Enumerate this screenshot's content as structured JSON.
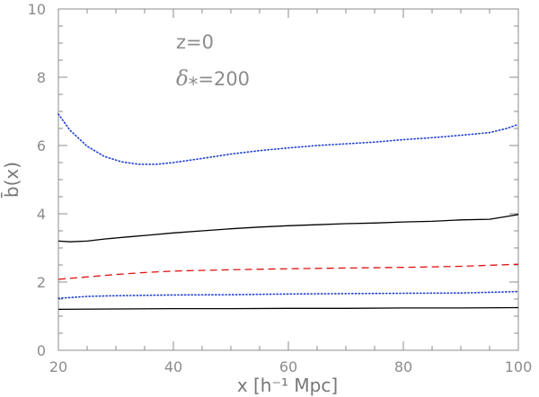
{
  "chart_data": {
    "type": "line",
    "title": "",
    "xlabel": "x [h⁻¹ Mpc]",
    "ylabel": "b̄(x)",
    "xlim": [
      20,
      100
    ],
    "ylim": [
      0,
      10
    ],
    "xticks": [
      "20",
      "40",
      "60",
      "80",
      "100"
    ],
    "yticks": [
      "0",
      "2",
      "4",
      "6",
      "8",
      "10"
    ],
    "annotations": {
      "redshift": "z=0",
      "threshold_symbol": "δ",
      "threshold_sub": "*",
      "threshold_value": "=200"
    },
    "grid": false,
    "series": [
      {
        "style": "dotted",
        "color": "#1f3fd0",
        "x": [
          20,
          22,
          25,
          28,
          31,
          34,
          37,
          40,
          45,
          50,
          55,
          60,
          65,
          70,
          75,
          80,
          85,
          90,
          95,
          98,
          100
        ],
        "y": [
          6.92,
          6.45,
          5.98,
          5.68,
          5.52,
          5.45,
          5.45,
          5.5,
          5.62,
          5.75,
          5.85,
          5.93,
          6.0,
          6.05,
          6.1,
          6.17,
          6.23,
          6.3,
          6.38,
          6.5,
          6.62
        ]
      },
      {
        "style": "solid",
        "color": "#000000",
        "x": [
          20,
          22,
          25,
          28,
          32,
          36,
          40,
          45,
          50,
          55,
          60,
          65,
          70,
          75,
          80,
          85,
          90,
          95,
          98,
          100
        ],
        "y": [
          3.2,
          3.18,
          3.2,
          3.26,
          3.32,
          3.38,
          3.44,
          3.5,
          3.56,
          3.61,
          3.65,
          3.68,
          3.71,
          3.73,
          3.76,
          3.78,
          3.82,
          3.84,
          3.92,
          3.98
        ]
      },
      {
        "style": "dashed",
        "color": "#e01010",
        "x": [
          20,
          25,
          30,
          35,
          40,
          50,
          60,
          70,
          80,
          90,
          100
        ],
        "y": [
          2.08,
          2.15,
          2.22,
          2.28,
          2.32,
          2.36,
          2.39,
          2.41,
          2.43,
          2.46,
          2.52
        ]
      },
      {
        "style": "dotted",
        "color": "#1f3fd0",
        "x": [
          20,
          25,
          30,
          40,
          50,
          60,
          70,
          80,
          90,
          100
        ],
        "y": [
          1.52,
          1.58,
          1.6,
          1.62,
          1.63,
          1.65,
          1.66,
          1.67,
          1.68,
          1.72
        ]
      },
      {
        "style": "solid",
        "color": "#000000",
        "x": [
          20,
          30,
          40,
          50,
          60,
          70,
          80,
          90,
          100
        ],
        "y": [
          1.2,
          1.21,
          1.22,
          1.22,
          1.23,
          1.23,
          1.24,
          1.24,
          1.25
        ]
      }
    ]
  }
}
